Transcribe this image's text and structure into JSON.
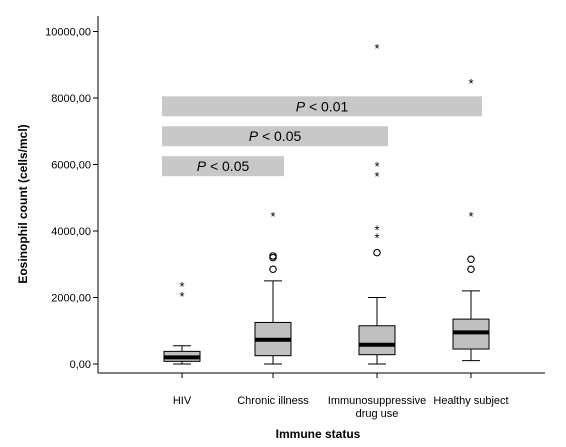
{
  "chart_data": {
    "type": "boxplot",
    "xlabel": "Immune status",
    "ylabel": "Eosinophil count (cells/mcl)",
    "ylim": [
      0,
      10500
    ],
    "yticks": [
      0,
      2000,
      4000,
      6000,
      8000,
      10000
    ],
    "ytick_labels": [
      "0,00",
      "2000,00",
      "4000,00",
      "6000,00",
      "8000,00",
      "10000,00"
    ],
    "categories": [
      [
        "HIV"
      ],
      [
        "Chronic illness"
      ],
      [
        "Immunosuppressive",
        "drug use"
      ],
      [
        "Healthy subject"
      ]
    ],
    "boxes": [
      {
        "whisker_low": 0,
        "q1": 80,
        "median": 200,
        "q3": 380,
        "whisker_high": 550,
        "outliers_circle": [],
        "outliers_star": [
          2050,
          2350
        ]
      },
      {
        "whisker_low": 0,
        "q1": 250,
        "median": 730,
        "q3": 1250,
        "whisker_high": 2500,
        "outliers_circle": [
          2850,
          3200,
          3250
        ],
        "outliers_star": [
          4450
        ]
      },
      {
        "whisker_low": 0,
        "q1": 280,
        "median": 580,
        "q3": 1150,
        "whisker_high": 2000,
        "outliers_circle": [
          3350
        ],
        "outliers_star": [
          3800,
          4050,
          5650,
          5950,
          9500
        ]
      },
      {
        "whisker_low": 100,
        "q1": 450,
        "median": 950,
        "q3": 1350,
        "whisker_high": 2200,
        "outliers_circle": [
          2850,
          3150
        ],
        "outliers_star": [
          4450,
          8450
        ]
      }
    ],
    "significance": [
      {
        "from": 0,
        "to": 3,
        "y_center": 7750,
        "label_italic": "P",
        "label_rest": " < 0.01"
      },
      {
        "from": 0,
        "to": 2,
        "y_center": 6850,
        "label_italic": "P",
        "label_rest": " < 0.05"
      },
      {
        "from": 0,
        "to": 1,
        "y_center": 5950,
        "label_italic": "P",
        "label_rest": " < 0.05"
      }
    ],
    "colors": {
      "box_fill": "#c0c0c0",
      "bar_fill": "#c8c8c8",
      "median": "#000000"
    }
  }
}
